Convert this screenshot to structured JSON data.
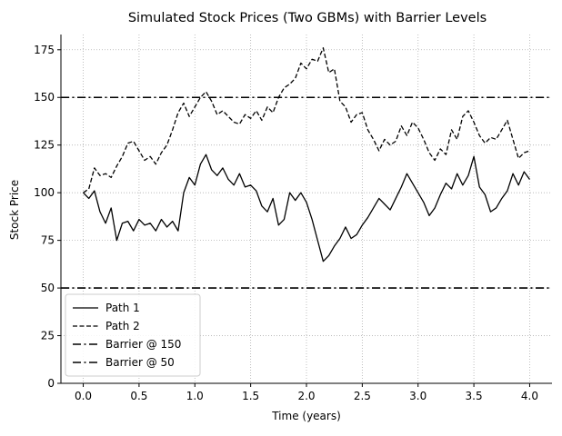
{
  "chart_data": {
    "type": "line",
    "title": "Simulated Stock Prices (Two GBMs) with Barrier Levels",
    "xlabel": "Time (years)",
    "ylabel": "Stock Price",
    "xlim": [
      -0.2,
      4.2
    ],
    "ylim": [
      0,
      183
    ],
    "xticks": [
      0.0,
      0.5,
      1.0,
      1.5,
      2.0,
      2.5,
      3.0,
      3.5,
      4.0
    ],
    "xtick_labels": [
      "0.0",
      "0.5",
      "1.0",
      "1.5",
      "2.0",
      "2.5",
      "3.0",
      "3.5",
      "4.0"
    ],
    "yticks": [
      0,
      25,
      50,
      75,
      100,
      125,
      150,
      175
    ],
    "ytick_labels": [
      "0",
      "25",
      "50",
      "75",
      "100",
      "125",
      "150",
      "175"
    ],
    "grid": true,
    "legend_position": "bottom-left",
    "series": [
      {
        "name": "Path 1",
        "style": "solid",
        "color": "#000000",
        "points": [
          [
            0.0,
            100
          ],
          [
            0.05,
            97
          ],
          [
            0.1,
            101
          ],
          [
            0.15,
            90
          ],
          [
            0.2,
            84
          ],
          [
            0.25,
            92
          ],
          [
            0.3,
            75
          ],
          [
            0.35,
            84
          ],
          [
            0.4,
            85
          ],
          [
            0.45,
            80
          ],
          [
            0.5,
            86
          ],
          [
            0.55,
            83
          ],
          [
            0.6,
            84
          ],
          [
            0.65,
            80
          ],
          [
            0.7,
            86
          ],
          [
            0.75,
            82
          ],
          [
            0.8,
            85
          ],
          [
            0.85,
            80
          ],
          [
            0.9,
            100
          ],
          [
            0.95,
            108
          ],
          [
            1.0,
            104
          ],
          [
            1.05,
            115
          ],
          [
            1.1,
            120
          ],
          [
            1.15,
            112
          ],
          [
            1.2,
            109
          ],
          [
            1.25,
            113
          ],
          [
            1.3,
            107
          ],
          [
            1.35,
            104
          ],
          [
            1.4,
            110
          ],
          [
            1.45,
            103
          ],
          [
            1.5,
            104
          ],
          [
            1.55,
            101
          ],
          [
            1.6,
            93
          ],
          [
            1.65,
            90
          ],
          [
            1.7,
            97
          ],
          [
            1.75,
            83
          ],
          [
            1.8,
            86
          ],
          [
            1.85,
            100
          ],
          [
            1.9,
            96
          ],
          [
            1.95,
            100
          ],
          [
            2.0,
            95
          ],
          [
            2.05,
            86
          ],
          [
            2.1,
            75
          ],
          [
            2.15,
            64
          ],
          [
            2.2,
            67
          ],
          [
            2.25,
            72
          ],
          [
            2.3,
            76
          ],
          [
            2.35,
            82
          ],
          [
            2.4,
            76
          ],
          [
            2.45,
            78
          ],
          [
            2.5,
            83
          ],
          [
            2.55,
            87
          ],
          [
            2.6,
            92
          ],
          [
            2.65,
            97
          ],
          [
            2.7,
            94
          ],
          [
            2.75,
            91
          ],
          [
            2.8,
            97
          ],
          [
            2.85,
            103
          ],
          [
            2.9,
            110
          ],
          [
            2.95,
            105
          ],
          [
            3.0,
            100
          ],
          [
            3.05,
            95
          ],
          [
            3.1,
            88
          ],
          [
            3.15,
            92
          ],
          [
            3.2,
            99
          ],
          [
            3.25,
            105
          ],
          [
            3.3,
            102
          ],
          [
            3.35,
            110
          ],
          [
            3.4,
            104
          ],
          [
            3.45,
            109
          ],
          [
            3.5,
            119
          ],
          [
            3.55,
            103
          ],
          [
            3.6,
            99
          ],
          [
            3.65,
            90
          ],
          [
            3.7,
            92
          ],
          [
            3.75,
            97
          ],
          [
            3.8,
            101
          ],
          [
            3.85,
            110
          ],
          [
            3.9,
            104
          ],
          [
            3.95,
            111
          ],
          [
            4.0,
            107
          ]
        ]
      },
      {
        "name": "Path 2",
        "style": "dashed",
        "color": "#000000",
        "points": [
          [
            0.0,
            100
          ],
          [
            0.05,
            102
          ],
          [
            0.1,
            113
          ],
          [
            0.15,
            109
          ],
          [
            0.2,
            110
          ],
          [
            0.25,
            108
          ],
          [
            0.3,
            114
          ],
          [
            0.35,
            119
          ],
          [
            0.4,
            126
          ],
          [
            0.45,
            127
          ],
          [
            0.5,
            122
          ],
          [
            0.55,
            117
          ],
          [
            0.6,
            119
          ],
          [
            0.65,
            115
          ],
          [
            0.7,
            121
          ],
          [
            0.75,
            125
          ],
          [
            0.8,
            133
          ],
          [
            0.85,
            142
          ],
          [
            0.9,
            147
          ],
          [
            0.95,
            140
          ],
          [
            1.0,
            145
          ],
          [
            1.05,
            150
          ],
          [
            1.1,
            153
          ],
          [
            1.15,
            148
          ],
          [
            1.2,
            141
          ],
          [
            1.25,
            143
          ],
          [
            1.3,
            140
          ],
          [
            1.35,
            137
          ],
          [
            1.4,
            136
          ],
          [
            1.45,
            141
          ],
          [
            1.5,
            139
          ],
          [
            1.55,
            143
          ],
          [
            1.6,
            138
          ],
          [
            1.65,
            145
          ],
          [
            1.7,
            142
          ],
          [
            1.75,
            150
          ],
          [
            1.8,
            155
          ],
          [
            1.85,
            157
          ],
          [
            1.9,
            160
          ],
          [
            1.95,
            168
          ],
          [
            2.0,
            165
          ],
          [
            2.05,
            170
          ],
          [
            2.1,
            169
          ],
          [
            2.15,
            176
          ],
          [
            2.2,
            163
          ],
          [
            2.25,
            165
          ],
          [
            2.3,
            148
          ],
          [
            2.35,
            145
          ],
          [
            2.4,
            137
          ],
          [
            2.45,
            141
          ],
          [
            2.5,
            142
          ],
          [
            2.55,
            133
          ],
          [
            2.6,
            128
          ],
          [
            2.65,
            122
          ],
          [
            2.7,
            128
          ],
          [
            2.75,
            125
          ],
          [
            2.8,
            127
          ],
          [
            2.85,
            135
          ],
          [
            2.9,
            130
          ],
          [
            2.95,
            137
          ],
          [
            3.0,
            134
          ],
          [
            3.05,
            128
          ],
          [
            3.1,
            121
          ],
          [
            3.15,
            117
          ],
          [
            3.2,
            123
          ],
          [
            3.25,
            120
          ],
          [
            3.3,
            133
          ],
          [
            3.35,
            128
          ],
          [
            3.4,
            140
          ],
          [
            3.45,
            143
          ],
          [
            3.5,
            137
          ],
          [
            3.55,
            130
          ],
          [
            3.6,
            126
          ],
          [
            3.65,
            129
          ],
          [
            3.7,
            128
          ],
          [
            3.75,
            133
          ],
          [
            3.8,
            138
          ],
          [
            3.85,
            128
          ],
          [
            3.9,
            118
          ],
          [
            3.95,
            121
          ],
          [
            4.0,
            122
          ]
        ]
      },
      {
        "name": "Barrier @ 150",
        "style": "dashdot",
        "color": "#000000",
        "points": [
          [
            -0.2,
            150
          ],
          [
            4.2,
            150
          ]
        ]
      },
      {
        "name": "Barrier @ 50",
        "style": "dashdot",
        "color": "#000000",
        "points": [
          [
            -0.2,
            50
          ],
          [
            4.2,
            50
          ]
        ]
      }
    ]
  }
}
